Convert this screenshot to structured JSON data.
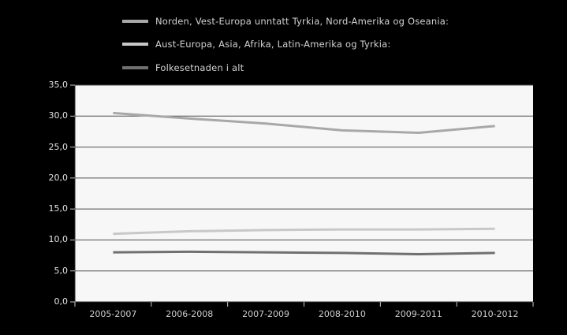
{
  "legend": {
    "items": [
      {
        "label": "Norden, Vest-Europa unntatt Tyrkia, Nord-Amerika og Oseania:",
        "color": "#a8a8a8"
      },
      {
        "label": "Aust-Europa, Asia, Afrika, Latin-Amerika og Tyrkia:",
        "color": "#c8c8c8"
      },
      {
        "label": "Folkesetnaden i alt",
        "color": "#707070"
      }
    ]
  },
  "chart_data": {
    "type": "line",
    "title": "",
    "xlabel": "",
    "ylabel": "",
    "categories": [
      "2005-2007",
      "2006-2008",
      "2007-2009",
      "2008-2010",
      "2009-2011",
      "2010-2012"
    ],
    "series": [
      {
        "name": "Norden, Vest-Europa unntatt Tyrkia, Nord-Amerika og Oseania:",
        "color": "#a8a8a8",
        "values": [
          30.5,
          29.6,
          28.8,
          27.7,
          27.3,
          28.4
        ]
      },
      {
        "name": "Aust-Europa, Asia, Afrika, Latin-Amerika og Tyrkia:",
        "color": "#c8c8c8",
        "values": [
          11.0,
          11.4,
          11.6,
          11.7,
          11.7,
          11.8
        ]
      },
      {
        "name": "Folkesetnaden i alt",
        "color": "#707070",
        "values": [
          8.0,
          8.1,
          8.0,
          7.9,
          7.7,
          7.9
        ]
      }
    ],
    "ylim": [
      0,
      35
    ],
    "yticks": [
      0,
      5,
      10,
      15,
      20,
      25,
      30,
      35
    ],
    "ytick_labels": [
      "0,0",
      "5,0",
      "10,0",
      "15,0",
      "20,0",
      "25,0",
      "30,0",
      "35,0"
    ],
    "grid": true,
    "legend_position": "top-left"
  },
  "colors": {
    "background": "#000000",
    "plot_bg": "#f7f7f7",
    "gridline": "#4d4d4d",
    "axis": "#2b2b2b",
    "tick": "#c8c8c8"
  }
}
